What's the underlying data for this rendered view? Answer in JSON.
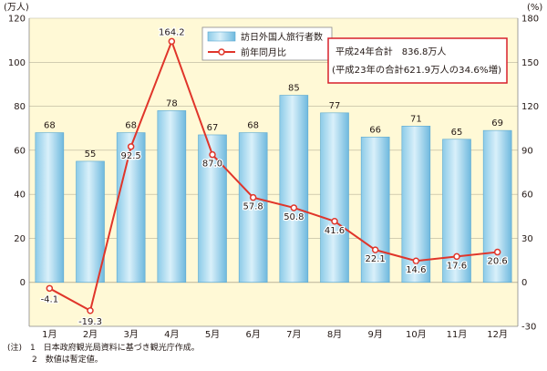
{
  "chart_data": {
    "type": "bar+line",
    "categories": [
      "1月",
      "2月",
      "3月",
      "4月",
      "5月",
      "6月",
      "7月",
      "8月",
      "9月",
      "10月",
      "11月",
      "12月"
    ],
    "left_axis": {
      "unit_label": "(万人)",
      "range": [
        -20,
        120
      ],
      "ticks": [
        0,
        20,
        40,
        60,
        80,
        100,
        120
      ]
    },
    "right_axis": {
      "unit_label": "(%)",
      "range": [
        -30,
        180
      ],
      "ticks": [
        -30,
        0,
        30,
        60,
        90,
        120,
        150,
        180
      ]
    },
    "series": [
      {
        "name": "訪日外国人旅行者数",
        "type": "bar",
        "axis": "left",
        "values": [
          68,
          55,
          68,
          78,
          67,
          68,
          85,
          77,
          66,
          71,
          65,
          69
        ],
        "labels": [
          "68",
          "55",
          "68",
          "78",
          "67",
          "68",
          "85",
          "77",
          "66",
          "71",
          "65",
          "69"
        ]
      },
      {
        "name": "前年同月比",
        "type": "line",
        "axis": "right",
        "values": [
          -4.1,
          -19.3,
          92.5,
          164.2,
          87.0,
          57.8,
          50.8,
          41.6,
          22.1,
          14.6,
          17.6,
          20.6
        ],
        "labels": [
          "-4.1",
          "-19.3",
          "92.5",
          "164.2",
          "87.0",
          "57.8",
          "50.8",
          "41.6",
          "22.1",
          "14.6",
          "17.6",
          "20.6"
        ]
      }
    ],
    "annotation": {
      "line1": "平成24年合計　836.8万人",
      "line2": "(平成23年の合計621.9万人の34.6%増)"
    },
    "grid": true,
    "legend_placement": "top-center"
  },
  "colors": {
    "plot_bg": "#fff9d6",
    "bar_top": "#bfe5f6",
    "bar_bottom": "#6fb9de",
    "line": "#e0352a",
    "annotation_border": "#d7212a",
    "grid": "#b8b39a"
  },
  "notes": [
    "(注)　1　日本政府観光局資料に基づき観光庁作成。",
    "　　　2　数値は暫定値。"
  ]
}
